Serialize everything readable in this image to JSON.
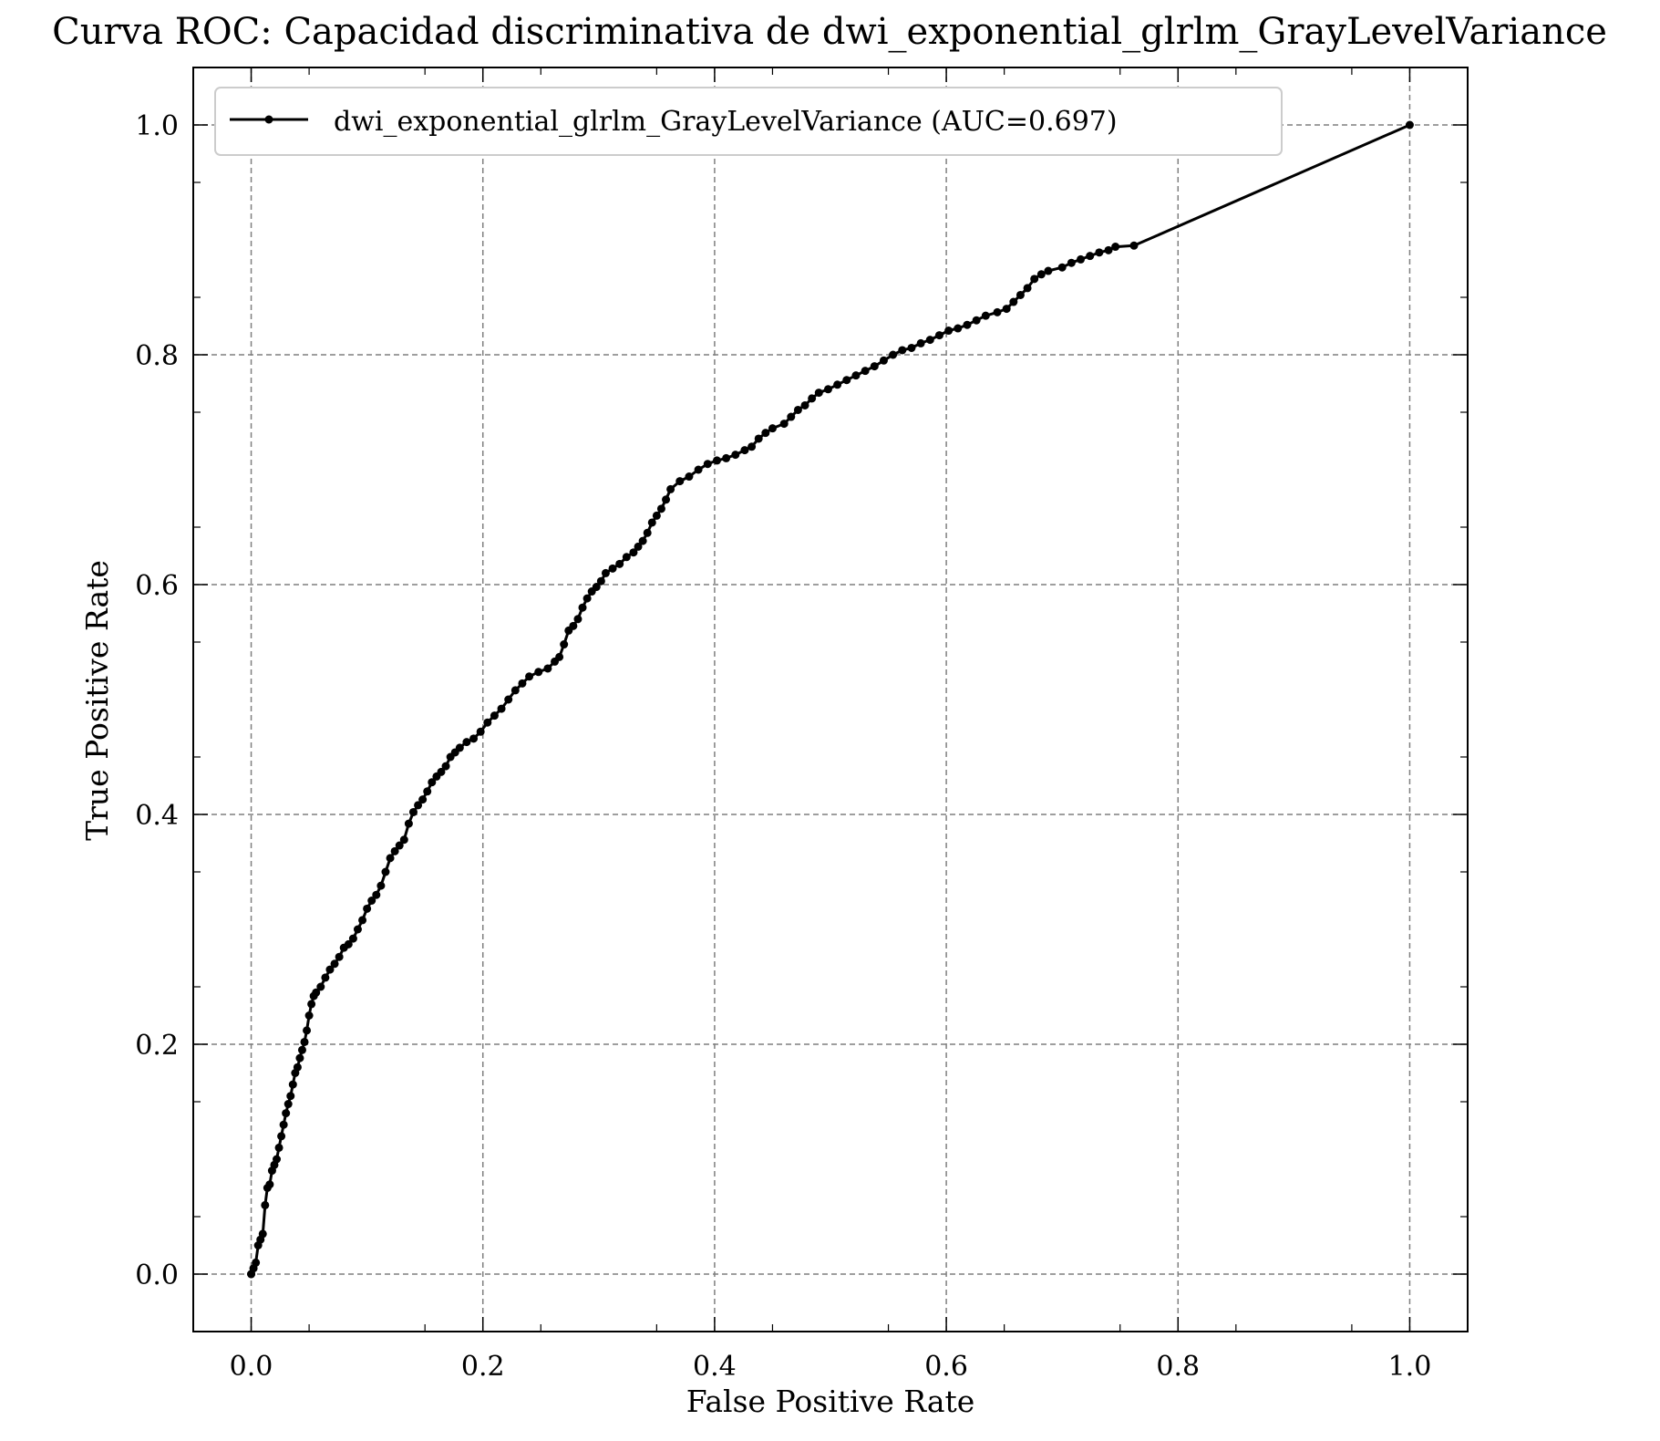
{
  "chart_data": {
    "type": "line",
    "title": "Curva ROC: Capacidad discriminativa de dwi_exponential_glrlm_GrayLevelVariance",
    "xlabel": "False Positive Rate",
    "ylabel": "True Positive Rate",
    "xlim": [
      -0.05,
      1.05
    ],
    "ylim": [
      -0.05,
      1.05
    ],
    "xticks": [
      "0.0",
      "0.2",
      "0.4",
      "0.6",
      "0.8",
      "1.0"
    ],
    "yticks": [
      "0.0",
      "0.2",
      "0.4",
      "0.6",
      "0.8",
      "1.0"
    ],
    "grid": true,
    "legend_position": "top-left",
    "series": [
      {
        "name": "dwi_exponential_glrlm_GrayLevelVariance (AUC=0.697)",
        "color": "#000000",
        "x": [
          0.0,
          0.0,
          0.002,
          0.004,
          0.006,
          0.008,
          0.01,
          0.012,
          0.014,
          0.016,
          0.018,
          0.02,
          0.022,
          0.024,
          0.026,
          0.028,
          0.03,
          0.032,
          0.034,
          0.036,
          0.038,
          0.04,
          0.042,
          0.044,
          0.046,
          0.048,
          0.05,
          0.052,
          0.054,
          0.056,
          0.06,
          0.064,
          0.068,
          0.072,
          0.076,
          0.08,
          0.084,
          0.088,
          0.092,
          0.096,
          0.1,
          0.104,
          0.108,
          0.112,
          0.116,
          0.12,
          0.124,
          0.128,
          0.132,
          0.136,
          0.14,
          0.144,
          0.148,
          0.152,
          0.156,
          0.16,
          0.164,
          0.168,
          0.172,
          0.176,
          0.18,
          0.186,
          0.192,
          0.198,
          0.204,
          0.21,
          0.216,
          0.222,
          0.228,
          0.234,
          0.24,
          0.248,
          0.256,
          0.262,
          0.266,
          0.27,
          0.274,
          0.278,
          0.282,
          0.286,
          0.29,
          0.294,
          0.298,
          0.302,
          0.306,
          0.312,
          0.318,
          0.324,
          0.33,
          0.334,
          0.338,
          0.342,
          0.346,
          0.35,
          0.354,
          0.358,
          0.362,
          0.37,
          0.378,
          0.386,
          0.394,
          0.402,
          0.41,
          0.418,
          0.426,
          0.432,
          0.438,
          0.444,
          0.45,
          0.46,
          0.466,
          0.472,
          0.478,
          0.484,
          0.49,
          0.498,
          0.506,
          0.514,
          0.522,
          0.53,
          0.538,
          0.546,
          0.554,
          0.562,
          0.57,
          0.578,
          0.586,
          0.594,
          0.602,
          0.61,
          0.618,
          0.626,
          0.634,
          0.644,
          0.652,
          0.658,
          0.664,
          0.67,
          0.676,
          0.682,
          0.688,
          0.7,
          0.708,
          0.716,
          0.724,
          0.732,
          0.74,
          0.746,
          0.762,
          1.0
        ],
        "y": [
          0.0,
          0.0,
          0.005,
          0.01,
          0.025,
          0.03,
          0.035,
          0.06,
          0.075,
          0.078,
          0.09,
          0.095,
          0.1,
          0.11,
          0.12,
          0.13,
          0.14,
          0.148,
          0.155,
          0.165,
          0.175,
          0.18,
          0.188,
          0.195,
          0.202,
          0.212,
          0.225,
          0.235,
          0.242,
          0.245,
          0.25,
          0.258,
          0.265,
          0.27,
          0.276,
          0.284,
          0.287,
          0.292,
          0.3,
          0.308,
          0.318,
          0.325,
          0.33,
          0.338,
          0.35,
          0.362,
          0.368,
          0.373,
          0.378,
          0.392,
          0.402,
          0.408,
          0.413,
          0.42,
          0.428,
          0.433,
          0.437,
          0.442,
          0.45,
          0.454,
          0.458,
          0.463,
          0.466,
          0.472,
          0.48,
          0.486,
          0.492,
          0.5,
          0.508,
          0.514,
          0.52,
          0.524,
          0.527,
          0.533,
          0.537,
          0.548,
          0.56,
          0.564,
          0.57,
          0.58,
          0.588,
          0.594,
          0.598,
          0.603,
          0.61,
          0.614,
          0.618,
          0.624,
          0.628,
          0.633,
          0.638,
          0.645,
          0.654,
          0.66,
          0.666,
          0.674,
          0.683,
          0.69,
          0.694,
          0.7,
          0.705,
          0.708,
          0.71,
          0.713,
          0.717,
          0.72,
          0.727,
          0.732,
          0.736,
          0.74,
          0.746,
          0.752,
          0.756,
          0.762,
          0.767,
          0.77,
          0.774,
          0.778,
          0.782,
          0.786,
          0.79,
          0.795,
          0.8,
          0.804,
          0.806,
          0.81,
          0.813,
          0.817,
          0.821,
          0.823,
          0.826,
          0.83,
          0.834,
          0.837,
          0.84,
          0.846,
          0.852,
          0.858,
          0.866,
          0.87,
          0.873,
          0.876,
          0.88,
          0.883,
          0.886,
          0.889,
          0.891,
          0.894,
          0.895,
          1.0
        ]
      }
    ]
  }
}
